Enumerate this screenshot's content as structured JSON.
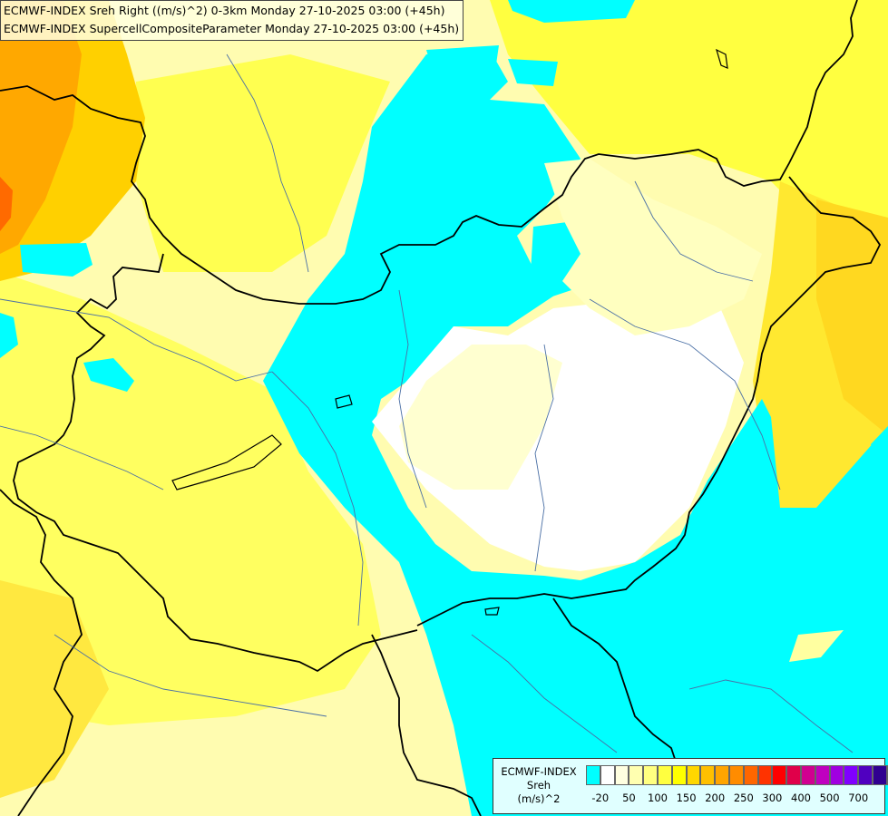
{
  "header": {
    "line1": "ECMWF-INDEX Sreh Right ((m/s)^2) 0-3km Monday 27-10-2025 03:00 (+45h)",
    "line2": "ECMWF-INDEX SupercellCompositeParameter Monday 27-10-2025 03:00 (+45h)"
  },
  "legend": {
    "title_line1": "ECMWF-INDEX",
    "title_line2": "Sreh",
    "title_line3": "(m/s)^2",
    "colors": [
      "#00ffff",
      "#ffffff",
      "#ffffe0",
      "#ffffb0",
      "#ffff80",
      "#ffff40",
      "#ffff00",
      "#ffd700",
      "#ffc000",
      "#ffa500",
      "#ff8c00",
      "#ff6600",
      "#ff3300",
      "#ff0000",
      "#e0004a",
      "#d00090",
      "#c000c0",
      "#a000e0",
      "#8000ff",
      "#5000c0",
      "#300090",
      "#000080"
    ],
    "tick_labels": [
      "-20",
      "50",
      "100",
      "150",
      "200",
      "250",
      "300",
      "400",
      "500",
      "700"
    ]
  }
}
